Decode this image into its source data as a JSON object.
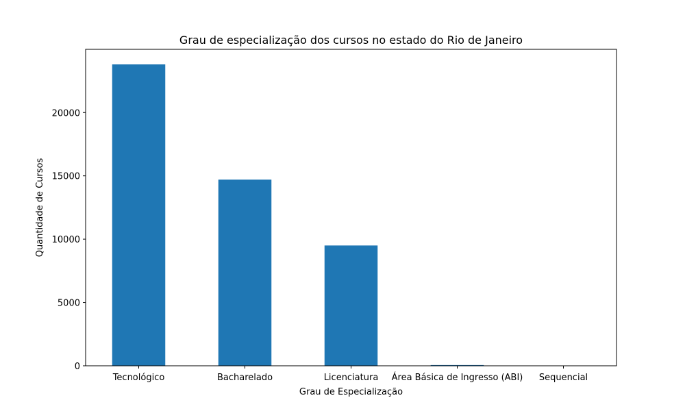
{
  "chart_data": {
    "type": "bar",
    "title": "Grau de especialização dos cursos no estado do Rio de Janeiro",
    "xlabel": "Grau de Especialização",
    "ylabel": "Quantidade de Cursos",
    "categories": [
      "Tecnológico",
      "Bacharelado",
      "Licenciatura",
      "Área Básica de Ingresso (ABI)",
      "Sequencial"
    ],
    "values": [
      23800,
      14700,
      9500,
      60,
      5
    ],
    "ylim": [
      0,
      24990
    ],
    "yticks": [
      0,
      5000,
      10000,
      15000,
      20000
    ],
    "ytick_labels": [
      "0",
      "5000",
      "10000",
      "15000",
      "20000"
    ],
    "grid": false,
    "bar_color": "#1f77b4"
  }
}
